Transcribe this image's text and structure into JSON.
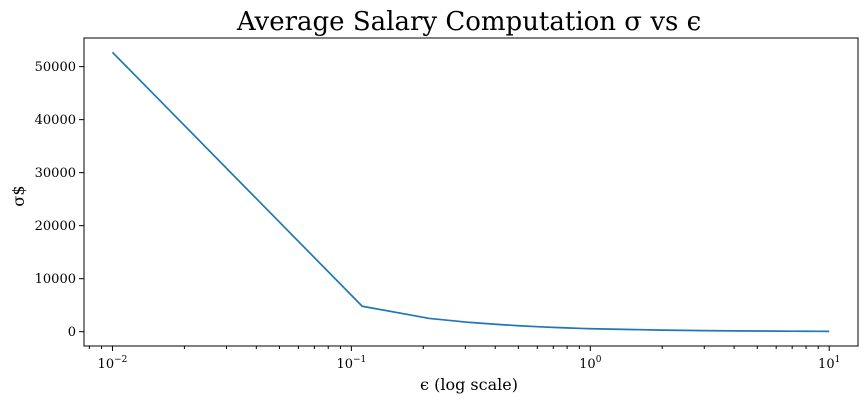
{
  "chart_data": {
    "type": "line",
    "title": "Average Salary Computation σ vs ϵ",
    "xlabel": "ϵ (log scale)",
    "ylabel": "σ$",
    "xscale": "log",
    "xlim": [
      0.0076,
      13.2
    ],
    "ylim": [
      -2700,
      55400
    ],
    "grid": false,
    "x_ticks": [
      {
        "value": 0.01,
        "base": "10",
        "exp": "−2"
      },
      {
        "value": 0.1,
        "base": "10",
        "exp": "−1"
      },
      {
        "value": 1,
        "base": "10",
        "exp": "0"
      },
      {
        "value": 10,
        "base": "10",
        "exp": "1"
      }
    ],
    "y_ticks": [
      {
        "value": 0,
        "label": "0"
      },
      {
        "value": 10000,
        "label": "10000"
      },
      {
        "value": 20000,
        "label": "20000"
      },
      {
        "value": 30000,
        "label": "30000"
      },
      {
        "value": 40000,
        "label": "40000"
      },
      {
        "value": 50000,
        "label": "50000"
      }
    ],
    "series": [
      {
        "color": "#1f77b4",
        "x": [
          0.01,
          0.111,
          0.212,
          0.313,
          0.414,
          0.515,
          0.616,
          0.717,
          0.818,
          0.919,
          1.02,
          2.0,
          3.0,
          4.0,
          5.0,
          6.0,
          7.0,
          8.0,
          9.0,
          10.0
        ],
        "y": [
          52700,
          4800,
          2500,
          1750,
          1350,
          1100,
          920,
          790,
          690,
          610,
          550,
          300,
          205,
          160,
          130,
          110,
          95,
          82,
          74,
          66
        ]
      }
    ]
  }
}
